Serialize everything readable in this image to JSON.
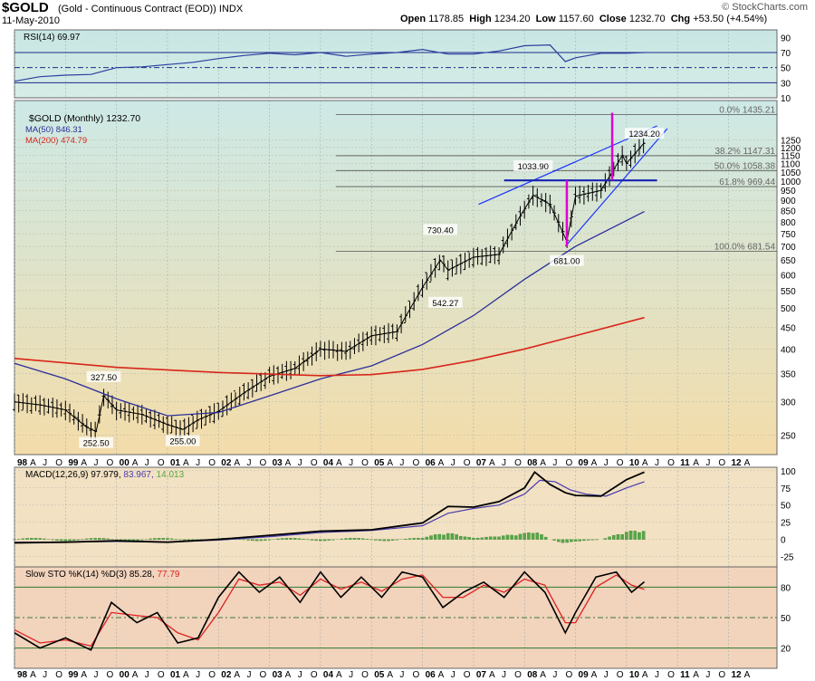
{
  "header": {
    "symbol": "$GOLD",
    "description": "(Gold - Continuous Contract (EOD))",
    "exchange": "INDX",
    "date": "11-May-2010",
    "open_label": "Open",
    "open": "1178.85",
    "high_label": "High",
    "high": "1234.20",
    "low_label": "Low",
    "low": "1157.60",
    "close_label": "Close",
    "close": "1232.70",
    "chg_label": "Chg",
    "chg": "+53.50 (+4.54%)",
    "watermark": "© StockCharts.com"
  },
  "colors": {
    "price_bg_top": "#cde9e6",
    "price_bg_bottom": "#f3dcaa",
    "macd_bg": "#f2e1c2",
    "sto_bg": "#f2d3bc",
    "ma50": "#2b2f9a",
    "ma200": "#d7261b",
    "fib_line": "#555555",
    "trendline": "#1a34ff",
    "spike": "#e000d0",
    "macd_line": "#000000",
    "signal_line": "#4b3bb0",
    "histogram": "#53a845",
    "stok": "#000000",
    "stod": "#dd2222"
  },
  "chart_data": [
    {
      "type": "line",
      "panel": "rsi",
      "title": "RSI(14) 69.97",
      "label": "RSI(14)",
      "last": "69.97",
      "ylim": [
        10,
        100
      ],
      "ticks": [
        90,
        70,
        50,
        30,
        10
      ],
      "reference_lines": [
        70,
        50,
        30
      ],
      "x": [
        1998.0,
        1998.5,
        1999.0,
        1999.5,
        2000.0,
        2000.5,
        2001.0,
        2001.5,
        2002.0,
        2002.5,
        2003.0,
        2003.5,
        2004.0,
        2004.5,
        2005.0,
        2005.5,
        2006.0,
        2006.5,
        2007.0,
        2007.5,
        2008.0,
        2008.5,
        2008.8,
        2009.0,
        2009.5,
        2010.0,
        2010.35
      ],
      "values": [
        32,
        38,
        40,
        41,
        50,
        51,
        54,
        57,
        62,
        66,
        69,
        67,
        70,
        65,
        68,
        70,
        74,
        68,
        68,
        72,
        79,
        80,
        58,
        63,
        69,
        69,
        70
      ]
    },
    {
      "type": "line",
      "panel": "price",
      "title": "$GOLD (Monthly) 1232.70",
      "scale": "log",
      "ylim": [
        225,
        1550
      ],
      "yticks": [
        1250,
        1200,
        1150,
        1100,
        1050,
        1000,
        950,
        900,
        850,
        800,
        750,
        700,
        650,
        600,
        550,
        500,
        450,
        400,
        350,
        300,
        250
      ],
      "xticks": [
        "98",
        "A",
        "J",
        "O",
        "99",
        "A",
        "J",
        "O",
        "00",
        "A",
        "J",
        "O",
        "01",
        "A",
        "J",
        "O",
        "02",
        "A",
        "J",
        "O",
        "03",
        "A",
        "J",
        "O",
        "04",
        "A",
        "J",
        "O",
        "05",
        "A",
        "J",
        "O",
        "06",
        "A",
        "J",
        "O",
        "07",
        "A",
        "J",
        "O",
        "08",
        "A",
        "J",
        "O",
        "09",
        "A",
        "J",
        "O",
        "10",
        "A",
        "J",
        "O",
        "11",
        "A",
        "J",
        "O",
        "12",
        "A"
      ],
      "series": [
        {
          "name": "$GOLD (Monthly) 1232.70",
          "x": [
            1998.0,
            1998.5,
            1999.0,
            1999.4,
            1999.6,
            1999.75,
            2000.0,
            2000.5,
            2001.0,
            2001.3,
            2001.6,
            2002.0,
            2002.5,
            2003.0,
            2003.5,
            2004.0,
            2004.5,
            2005.0,
            2005.5,
            2006.0,
            2006.35,
            2006.5,
            2007.0,
            2007.5,
            2007.9,
            2008.17,
            2008.5,
            2008.83,
            2009.0,
            2009.5,
            2009.92,
            2010.0,
            2010.35
          ],
          "values": [
            300,
            295,
            287,
            262,
            255,
            310,
            287,
            280,
            265,
            258,
            272,
            285,
            315,
            345,
            360,
            400,
            395,
            430,
            440,
            560,
            650,
            615,
            660,
            670,
            820,
            925,
            880,
            720,
            920,
            950,
            1150,
            1100,
            1232.7
          ]
        },
        {
          "name": "MA(50) 846.31",
          "x": [
            1998.0,
            1999.0,
            2000.0,
            2001.0,
            2002.0,
            2003.0,
            2004.0,
            2005.0,
            2006.0,
            2007.0,
            2008.0,
            2009.0,
            2010.35
          ],
          "values": [
            370,
            340,
            305,
            278,
            283,
            310,
            340,
            365,
            410,
            480,
            585,
            700,
            846.31
          ]
        },
        {
          "name": "MA(200) 474.79",
          "x": [
            1998.0,
            2000.0,
            2002.0,
            2004.0,
            2005.0,
            2006.0,
            2007.0,
            2008.0,
            2009.0,
            2010.35
          ],
          "values": [
            380,
            362,
            352,
            346,
            348,
            358,
            376,
            400,
            430,
            474.79
          ]
        }
      ],
      "annotations": [
        {
          "text": "327.50",
          "x": 1999.75,
          "y": 327.5
        },
        {
          "text": "252.50",
          "x": 1999.6,
          "y": 252.5
        },
        {
          "text": "255.00",
          "x": 2001.3,
          "y": 255.0
        },
        {
          "text": "730.40",
          "x": 2006.35,
          "y": 730.4
        },
        {
          "text": "542.27",
          "x": 2006.45,
          "y": 542.27
        },
        {
          "text": "1033.90",
          "x": 2008.17,
          "y": 1033.9
        },
        {
          "text": "681.00",
          "x": 2008.83,
          "y": 681.0
        },
        {
          "text": "1234.20",
          "x": 2010.35,
          "y": 1234.2
        }
      ],
      "fibonacci": [
        {
          "label": "0.0% 1435.21",
          "value": 1435.21
        },
        {
          "label": "38.2% 1147.31",
          "value": 1147.31
        },
        {
          "label": "50.0% 1058.38",
          "value": 1058.38
        },
        {
          "label": "61.8% 969.44",
          "value": 969.44
        },
        {
          "label": "100.0% 681.54",
          "value": 681.54
        }
      ]
    },
    {
      "type": "line",
      "panel": "macd",
      "title": "MACD(12,26,9) 97.979, 83.967, 14.013",
      "label": "MACD(12,26,9)",
      "macd": "97.979",
      "signal": "83.967",
      "hist": "14.013",
      "ylim": [
        -40,
        105
      ],
      "ticks": [
        100,
        75,
        50,
        25,
        0,
        -25
      ],
      "series": [
        {
          "name": "MACD",
          "x": [
            1998.0,
            1999.0,
            2000.0,
            2001.0,
            2002.0,
            2003.0,
            2004.0,
            2005.0,
            2006.0,
            2006.5,
            2007.0,
            2007.5,
            2008.0,
            2008.2,
            2008.5,
            2008.8,
            2009.0,
            2009.5,
            2010.0,
            2010.35
          ],
          "values": [
            -5,
            -4,
            -2,
            -4,
            0,
            6,
            12,
            14,
            24,
            48,
            47,
            55,
            75,
            98,
            80,
            68,
            64,
            63,
            87,
            97.979
          ]
        },
        {
          "name": "Signal",
          "x": [
            1998.0,
            1999.0,
            2000.0,
            2001.0,
            2002.0,
            2003.0,
            2004.0,
            2005.0,
            2006.0,
            2006.5,
            2007.0,
            2007.5,
            2008.0,
            2008.3,
            2008.6,
            2008.9,
            2009.2,
            2009.6,
            2010.0,
            2010.35
          ],
          "values": [
            -4,
            -4,
            -3,
            -4,
            -1,
            4,
            10,
            13,
            20,
            38,
            45,
            50,
            66,
            86,
            84,
            72,
            66,
            63,
            75,
            83.967
          ]
        },
        {
          "name": "Histogram",
          "x": [
            2006.0,
            2006.5,
            2007.0,
            2007.5,
            2008.0,
            2008.2,
            2008.5,
            2008.8,
            2009.0,
            2009.5,
            2010.0,
            2010.35
          ],
          "values": [
            4,
            10,
            2,
            5,
            9,
            13,
            0,
            -6,
            -3,
            0,
            12,
            14.013
          ]
        }
      ]
    },
    {
      "type": "line",
      "panel": "sto",
      "title": "Slow STO %K(14) %D(3) 85.28, 77.79",
      "label": "Slow STO %K(14) %D(3)",
      "k": "85.28",
      "d": "77.79",
      "ylim": [
        0,
        100
      ],
      "ticks": [
        80,
        50,
        20
      ],
      "series": [
        {
          "name": "%K",
          "x": [
            1998.0,
            1998.5,
            1999.0,
            1999.5,
            1999.9,
            2000.4,
            2000.8,
            2001.2,
            2001.6,
            2002.0,
            2002.4,
            2002.8,
            2003.2,
            2003.6,
            2004.0,
            2004.4,
            2004.8,
            2005.2,
            2005.6,
            2006.0,
            2006.4,
            2006.8,
            2007.2,
            2007.6,
            2008.0,
            2008.4,
            2008.8,
            2009.0,
            2009.4,
            2009.8,
            2010.1,
            2010.35
          ],
          "values": [
            35,
            20,
            30,
            18,
            65,
            45,
            55,
            25,
            30,
            70,
            95,
            75,
            90,
            65,
            95,
            70,
            90,
            70,
            95,
            90,
            60,
            75,
            85,
            70,
            95,
            75,
            35,
            55,
            90,
            95,
            75,
            85.28
          ]
        },
        {
          "name": "%D",
          "x": [
            1998.0,
            1998.5,
            1999.0,
            1999.5,
            1999.9,
            2000.4,
            2000.8,
            2001.2,
            2001.6,
            2002.0,
            2002.4,
            2002.8,
            2003.2,
            2003.6,
            2004.0,
            2004.4,
            2004.8,
            2005.2,
            2005.6,
            2006.0,
            2006.4,
            2006.8,
            2007.2,
            2007.6,
            2008.0,
            2008.4,
            2008.8,
            2009.0,
            2009.4,
            2009.8,
            2010.1,
            2010.35
          ],
          "values": [
            38,
            25,
            28,
            22,
            55,
            52,
            50,
            35,
            28,
            55,
            88,
            82,
            85,
            72,
            88,
            78,
            85,
            76,
            88,
            92,
            70,
            70,
            82,
            75,
            88,
            82,
            45,
            45,
            80,
            92,
            82,
            77.79
          ]
        }
      ]
    }
  ]
}
